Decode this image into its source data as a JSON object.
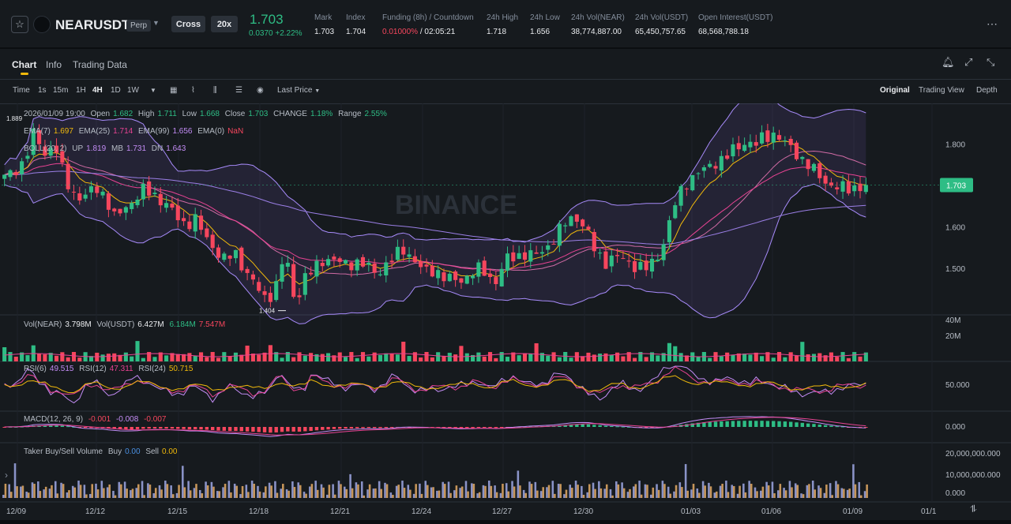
{
  "header": {
    "symbol": "NEARUSDT",
    "contract_type": "Perp",
    "margin_mode": "Cross",
    "leverage": "20x",
    "last_price": "1.703",
    "price_change": "0.0370",
    "price_change_pct": "+2.22%",
    "stats": [
      {
        "label": "Mark",
        "value": "1.703"
      },
      {
        "label": "Index",
        "value": "1.704"
      },
      {
        "label": "Funding (8h) / Countdown",
        "value_a": "0.01000%",
        "value_b": " / 02:05:21"
      },
      {
        "label": "24h High",
        "value": "1.718"
      },
      {
        "label": "24h Low",
        "value": "1.656"
      },
      {
        "label": "24h Vol(NEAR)",
        "value": "38,774,887.00"
      },
      {
        "label": "24h Vol(USDT)",
        "value": "65,450,757.65"
      },
      {
        "label": "Open Interest(USDT)",
        "value": "68,568,788.18"
      }
    ]
  },
  "tabs": [
    "Chart",
    "Info",
    "Trading Data"
  ],
  "toolbar": {
    "time_label": "Time",
    "intervals": [
      "1s",
      "15m",
      "1H",
      "4H",
      "1D",
      "1W"
    ],
    "active_interval": "4H",
    "price_source": "Last Price",
    "views": [
      "Original",
      "Trading View",
      "Depth"
    ],
    "active_view": "Original"
  },
  "ohlc": {
    "date": "2026/01/09 19:00",
    "open_label": "Open",
    "open": "1.682",
    "high_label": "High",
    "high": "1.711",
    "low_label": "Low",
    "low": "1.668",
    "close_label": "Close",
    "close": "1.703",
    "change_label": "CHANGE",
    "change": "1.18%",
    "range_label": "Range",
    "range": "2.55%"
  },
  "ema": {
    "ema7_label": "EMA(7)",
    "ema7": "1.697",
    "ema25_label": "EMA(25)",
    "ema25": "1.714",
    "ema99_label": "EMA(99)",
    "ema99": "1.656",
    "ema0_label": "EMA(0)",
    "ema0": "NaN"
  },
  "boll": {
    "label": "BOLL(20, 2)",
    "up_label": "UP",
    "up": "1.819",
    "mb_label": "MB",
    "mb": "1.731",
    "dn_label": "DN",
    "dn": "1.643"
  },
  "vol": {
    "near_label": "Vol(NEAR)",
    "near": "3.798M",
    "usdt_label": "Vol(USDT)",
    "usdt": "6.427M",
    "ma1": "6.184M",
    "ma2": "7.547M"
  },
  "rsi": {
    "rsi6_label": "RSI(6)",
    "rsi6": "49.515",
    "rsi12_label": "RSI(12)",
    "rsi12": "47.311",
    "rsi24_label": "RSI(24)",
    "rsi24": "50.715"
  },
  "macd": {
    "label": "MACD(12, 26, 9)",
    "dif": "-0.001",
    "dea": "-0.008",
    "hist": "-0.007"
  },
  "taker": {
    "label": "Taker Buy/Sell Volume",
    "buy_label": "Buy",
    "buy": "0.00",
    "sell_label": "Sell",
    "sell": "0.00"
  },
  "chart_data": {
    "type": "candlestick",
    "interval": "4H",
    "price_axis_ticks": [
      "1.800",
      "1.700",
      "1.600",
      "1.500"
    ],
    "ylim": [
      1.39,
      1.9
    ],
    "last_price_tag": "1.703",
    "max_marker": "1.889",
    "min_marker": "1.404",
    "x_ticks": [
      "12/09",
      "12/12",
      "12/15",
      "12/18",
      "12/21",
      "12/24",
      "12/27",
      "12/30",
      "01/03",
      "01/06",
      "01/09",
      "01/1"
    ],
    "volume_axis_ticks": [
      "40M",
      "20M"
    ],
    "rsi_axis_ticks": [
      "50.000"
    ],
    "macd_axis_ticks": [
      "0.000"
    ],
    "taker_axis_ticks": [
      "20,000,000.000",
      "10,000,000.000",
      "0.000"
    ],
    "close_path": [
      1.72,
      1.74,
      1.76,
      1.83,
      1.78,
      1.8,
      1.72,
      1.68,
      1.67,
      1.7,
      1.68,
      1.62,
      1.65,
      1.67,
      1.69,
      1.68,
      1.66,
      1.63,
      1.61,
      1.62,
      1.58,
      1.55,
      1.52,
      1.54,
      1.5,
      1.46,
      1.43,
      1.45,
      1.54,
      1.42,
      1.48,
      1.5,
      1.53,
      1.52,
      1.51,
      1.52,
      1.51,
      1.49,
      1.51,
      1.53,
      1.55,
      1.52,
      1.49,
      1.5,
      1.48,
      1.47,
      1.48,
      1.5,
      1.49,
      1.47,
      1.52,
      1.53,
      1.54,
      1.53,
      1.55,
      1.58,
      1.61,
      1.63,
      1.6,
      1.54,
      1.52,
      1.53,
      1.52,
      1.51,
      1.5,
      1.52,
      1.58,
      1.66,
      1.71,
      1.73,
      1.74,
      1.76,
      1.77,
      1.79,
      1.81,
      1.8,
      1.82,
      1.83,
      1.8,
      1.78,
      1.76,
      1.73,
      1.71,
      1.7,
      1.69,
      1.7,
      1.703
    ],
    "colors": {
      "up": "#2ebd85",
      "down": "#f6465d",
      "ema7": "#f0b90b",
      "ema25": "#e84393",
      "ema99": "#9b7fe6",
      "boll": "#a78bfa"
    }
  }
}
